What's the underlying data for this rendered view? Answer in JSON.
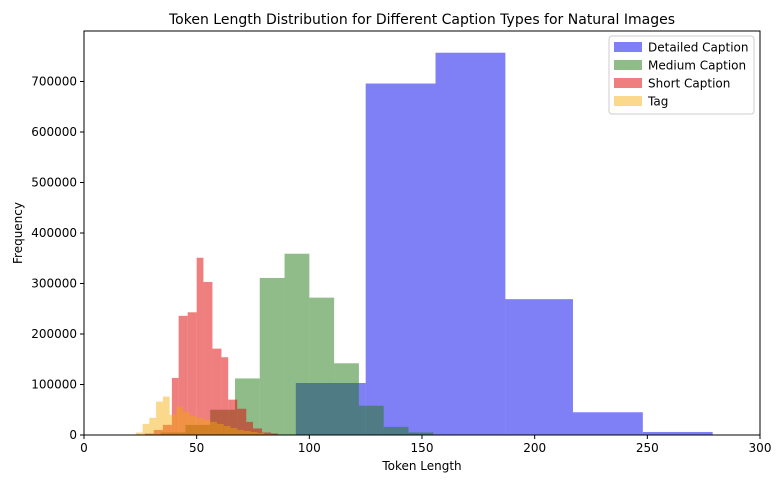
{
  "chart_data": {
    "type": "histogram",
    "title": "Token Length Distribution for Different Caption Types for Natural Images",
    "xlabel": "Token Length",
    "ylabel": "Frequency",
    "xlim": [
      0,
      300
    ],
    "ylim": [
      0,
      800000
    ],
    "xticks": [
      0,
      50,
      100,
      150,
      200,
      250,
      300
    ],
    "yticks": [
      0,
      100000,
      200000,
      300000,
      400000,
      500000,
      600000,
      700000
    ],
    "grid": false,
    "legend_position": "top-right",
    "series": [
      {
        "name": "Detailed Caption",
        "color": "#0000ee",
        "opacity": 0.5,
        "edges": [
          94,
          125,
          156,
          187,
          217,
          248,
          279
        ],
        "values": [
          103000,
          696000,
          757000,
          269000,
          45000,
          6000
        ]
      },
      {
        "name": "Medium Caption",
        "color": "#1f7a11",
        "opacity": 0.5,
        "edges": [
          23,
          34,
          45,
          56,
          67,
          78,
          89,
          100,
          111,
          122,
          133,
          144,
          155
        ],
        "values": [
          1000,
          5000,
          20000,
          50000,
          112000,
          311000,
          359000,
          272000,
          142000,
          58000,
          16000,
          5000
        ]
      },
      {
        "name": "Short Caption",
        "color": "#e00000",
        "opacity": 0.5,
        "edges": [
          23,
          27,
          31,
          35,
          39,
          42,
          46,
          50,
          53,
          57,
          61,
          64,
          68,
          72,
          75,
          79,
          83,
          86,
          90,
          94
        ],
        "values": [
          1000,
          3000,
          10000,
          20000,
          113000,
          236000,
          243000,
          351000,
          303000,
          171000,
          154000,
          70000,
          52000,
          26000,
          13000,
          5000,
          3000,
          1000,
          1000
        ]
      },
      {
        "name": "Tag",
        "color": "#f5a800",
        "opacity": 0.45,
        "edges": [
          23,
          26,
          29,
          32,
          35,
          38,
          41,
          44,
          47,
          50,
          53,
          56,
          59,
          62,
          65,
          68,
          71,
          74,
          77,
          80,
          83
        ],
        "values": [
          5000,
          22000,
          34000,
          66000,
          76000,
          40000,
          56000,
          46000,
          38000,
          34000,
          30000,
          26000,
          22000,
          18000,
          14000,
          10000,
          8000,
          6000,
          4000,
          2000
        ]
      }
    ]
  }
}
